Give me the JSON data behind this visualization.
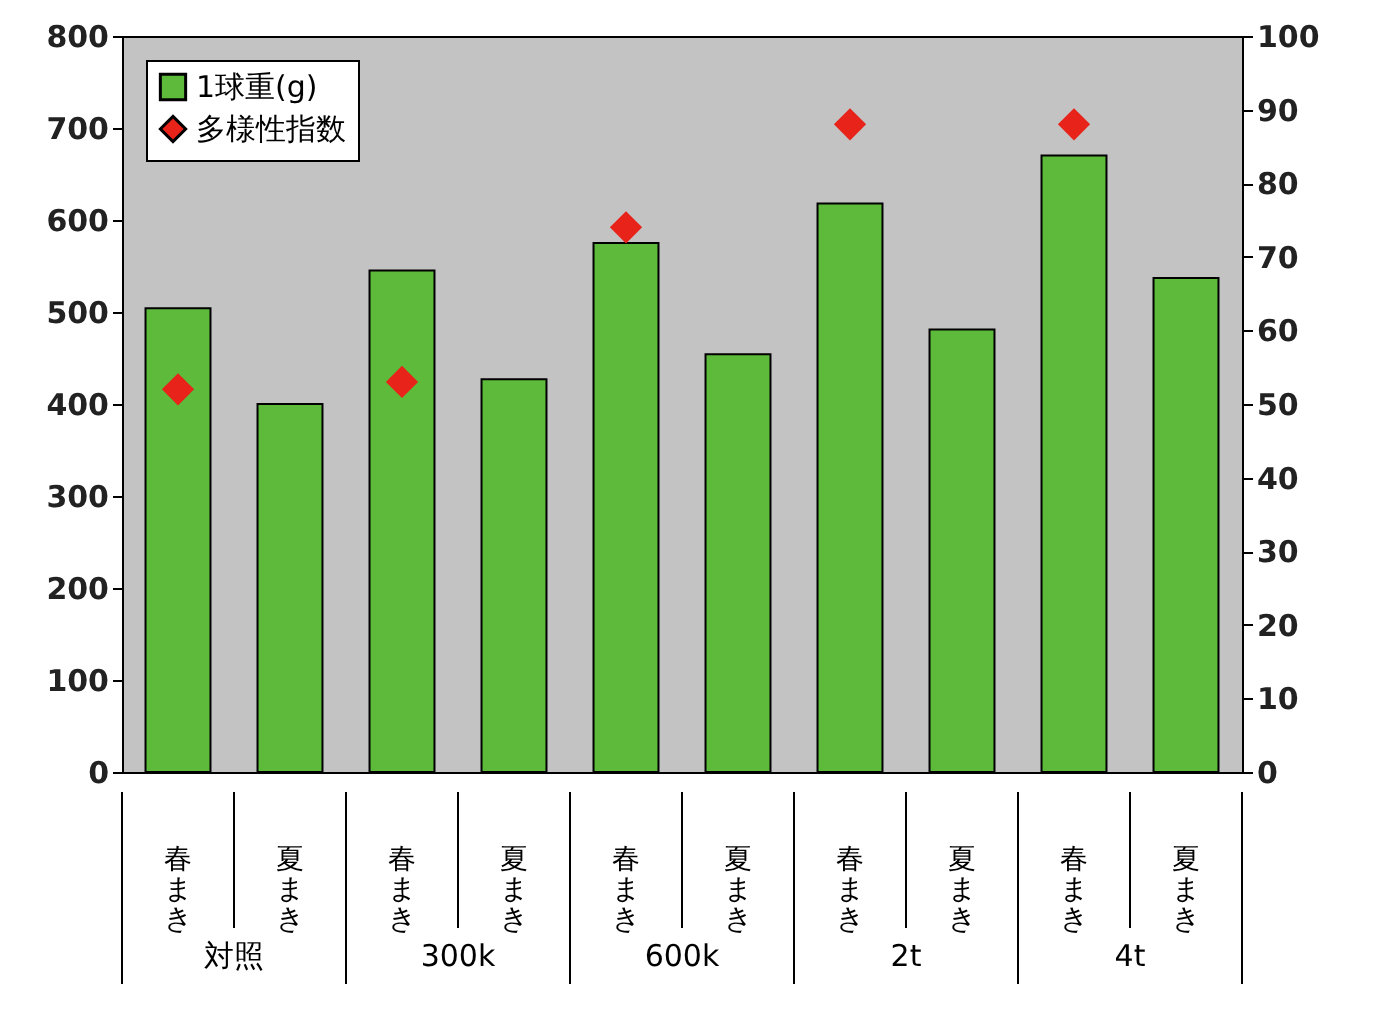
{
  "chart_data": {
    "type": "bar",
    "categories": [
      "春まき",
      "夏まき",
      "春まき",
      "夏まき",
      "春まき",
      "夏まき",
      "春まき",
      "夏まき",
      "春まき",
      "夏まき"
    ],
    "series": [
      {
        "name": "1球重(g)",
        "color": "#5dba3b",
        "values": [
          504,
          400,
          545,
          427,
          575,
          454,
          618,
          481,
          670,
          537
        ]
      },
      {
        "name": "多様性指数",
        "type": "scatter",
        "axis": "y2",
        "color": "#e8231a",
        "values": [
          52,
          null,
          53,
          null,
          74,
          null,
          88,
          null,
          88,
          null
        ]
      }
    ],
    "annotations": [
      "対照",
      "300k",
      "600k",
      "2t",
      "4t"
    ],
    "ylim": [
      0,
      800
    ],
    "yticks": [
      0,
      100,
      200,
      300,
      400,
      500,
      600,
      700,
      800
    ],
    "y2lim": [
      0,
      100
    ],
    "y2ticks": [
      0,
      10,
      20,
      30,
      40,
      50,
      60,
      70,
      80,
      90,
      100
    ],
    "legend": "top left",
    "marker": "diamond"
  }
}
